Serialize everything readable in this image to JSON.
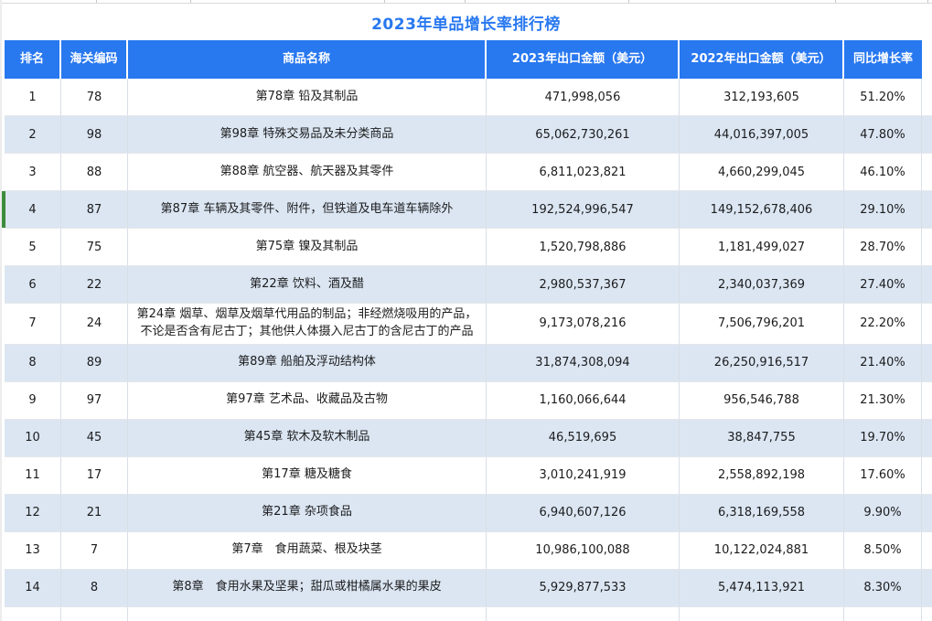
{
  "title": "2023年单品增长率排行榜",
  "colors": {
    "header_bg": "#2878f0",
    "title_color": "#2878f0",
    "alt_row_bg": "#dbe6f2",
    "marker_color": "#3d8b3d",
    "header_text": "#ffffff"
  },
  "chart_data": {
    "type": "table",
    "title": "2023年单品增长率排行榜",
    "columns": [
      "排名",
      "海关编码",
      "商品名称",
      "2023年出口金额（美元）",
      "2022年出口金额（美元）",
      "同比增长率"
    ],
    "rows": [
      {
        "rank": "1",
        "code": "78",
        "name": "第78章 铅及其制品",
        "amount_2023": "471,998,056",
        "amount_2022": "312,193,605",
        "growth": "51.20%",
        "marked": false
      },
      {
        "rank": "2",
        "code": "98",
        "name": "第98章 特殊交易品及未分类商品",
        "amount_2023": "65,062,730,261",
        "amount_2022": "44,016,397,005",
        "growth": "47.80%",
        "marked": false
      },
      {
        "rank": "3",
        "code": "88",
        "name": "第88章 航空器、航天器及其零件",
        "amount_2023": "6,811,023,821",
        "amount_2022": "4,660,299,045",
        "growth": "46.10%",
        "marked": false
      },
      {
        "rank": "4",
        "code": "87",
        "name": "第87章 车辆及其零件、附件，但铁道及电车道车辆除外",
        "amount_2023": "192,524,996,547",
        "amount_2022": "149,152,678,406",
        "growth": "29.10%",
        "marked": true
      },
      {
        "rank": "5",
        "code": "75",
        "name": "第75章 镍及其制品",
        "amount_2023": "1,520,798,886",
        "amount_2022": "1,181,499,027",
        "growth": "28.70%",
        "marked": false
      },
      {
        "rank": "6",
        "code": "22",
        "name": "第22章 饮料、酒及醋",
        "amount_2023": "2,980,537,367",
        "amount_2022": "2,340,037,369",
        "growth": "27.40%",
        "marked": false
      },
      {
        "rank": "7",
        "code": "24",
        "name": "第24章 烟草、烟草及烟草代用品的制品；非经燃烧吸用的产品，不论是否含有尼古丁；其他供人体摄入尼古丁的含尼古丁的产品",
        "amount_2023": "9,173,078,216",
        "amount_2022": "7,506,796,201",
        "growth": "22.20%",
        "marked": false
      },
      {
        "rank": "8",
        "code": "89",
        "name": "第89章 船舶及浮动结构体",
        "amount_2023": "31,874,308,094",
        "amount_2022": "26,250,916,517",
        "growth": "21.40%",
        "marked": false
      },
      {
        "rank": "9",
        "code": "97",
        "name": "第97章 艺术品、收藏品及古物",
        "amount_2023": "1,160,066,644",
        "amount_2022": "956,546,788",
        "growth": "21.30%",
        "marked": false
      },
      {
        "rank": "10",
        "code": "45",
        "name": "第45章 软木及软木制品",
        "amount_2023": "46,519,695",
        "amount_2022": "38,847,755",
        "growth": "19.70%",
        "marked": false
      },
      {
        "rank": "11",
        "code": "17",
        "name": "第17章 糖及糖食",
        "amount_2023": "3,010,241,919",
        "amount_2022": "2,558,892,198",
        "growth": "17.60%",
        "marked": false
      },
      {
        "rank": "12",
        "code": "21",
        "name": "第21章 杂项食品",
        "amount_2023": "6,940,607,126",
        "amount_2022": "6,318,169,558",
        "growth": "9.90%",
        "marked": false
      },
      {
        "rank": "13",
        "code": "7",
        "name": "第7章　食用蔬菜、根及块茎",
        "amount_2023": "10,986,100,088",
        "amount_2022": "10,122,024,881",
        "growth": "8.50%",
        "marked": false
      },
      {
        "rank": "14",
        "code": "8",
        "name": "第8章　食用水果及坚果；甜瓜或柑橘属水果的果皮",
        "amount_2023": "5,929,877,533",
        "amount_2022": "5,474,113,921",
        "growth": "8.30%",
        "marked": false
      }
    ]
  }
}
